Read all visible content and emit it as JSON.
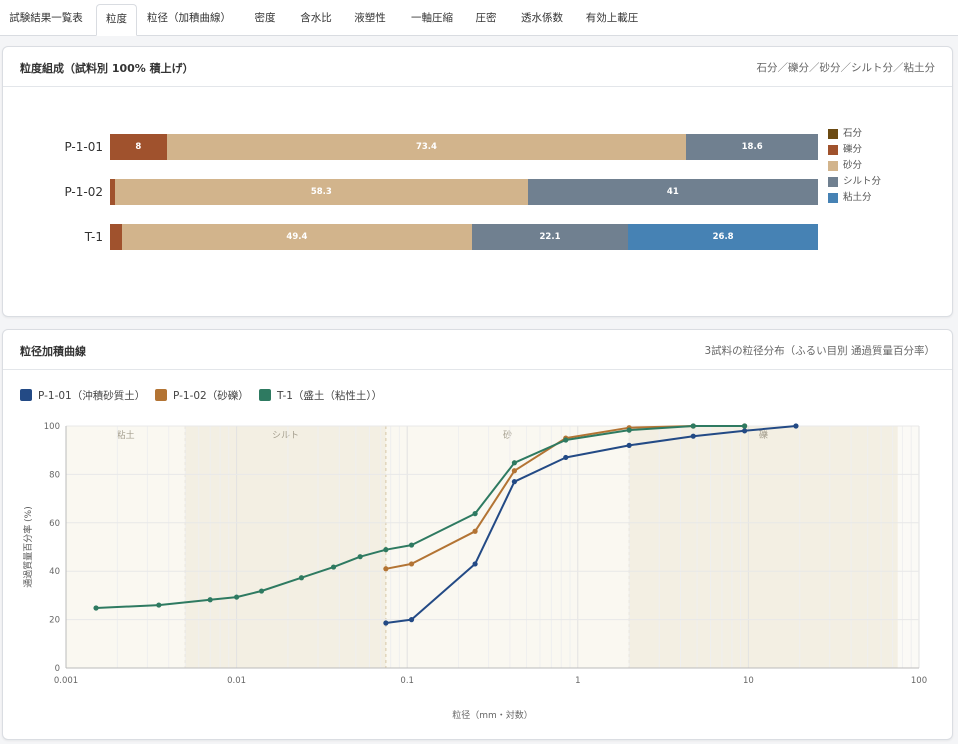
{
  "tabs": [
    {
      "label": "試験結果一覧表",
      "active": false
    },
    {
      "label": "粒度",
      "active": true
    },
    {
      "label": "粒径（加積曲線）",
      "active": false
    },
    {
      "label": "密度",
      "active": false
    },
    {
      "label": "含水比",
      "active": false
    },
    {
      "label": "液塑性",
      "active": false
    },
    {
      "label": "一軸圧縮",
      "active": false
    },
    {
      "label": "圧密",
      "active": false
    },
    {
      "label": "透水係数",
      "active": false
    },
    {
      "label": "有効上載圧",
      "active": false
    }
  ],
  "composition_panel": {
    "title": "粒度組成（試料別 100% 積上げ）",
    "subtitle": "石分／礫分／砂分／シルト分／粘土分"
  },
  "curve_panel": {
    "title": "粒径加積曲線",
    "subtitle": "3試料の粒径分布（ふるい目別 通過質量百分率）"
  },
  "colors": {
    "gravel_stone": "#6b4a12",
    "gravel": "#a0522d",
    "sand": "#d2b48c",
    "silt": "#708090",
    "clay": "#4682b4",
    "p101": "#234a85",
    "p102": "#b37434",
    "t1": "#2e7a61"
  },
  "chart_data": [
    {
      "type": "bar",
      "orientation": "horizontal",
      "stacked": true,
      "categories": [
        "P-1-01",
        "P-1-02",
        "T-1"
      ],
      "series": [
        {
          "name": "石分",
          "values": [
            0,
            0,
            0
          ],
          "color": "#6b4a12"
        },
        {
          "name": "礫分",
          "values": [
            8,
            0.7,
            1.7
          ],
          "color": "#a0522d"
        },
        {
          "name": "砂分",
          "values": [
            73.4,
            58.3,
            49.4
          ],
          "color": "#d2b48c"
        },
        {
          "name": "シルト分",
          "values": [
            18.6,
            41,
            22.1
          ],
          "color": "#708090"
        },
        {
          "name": "粘土分",
          "values": [
            0,
            0,
            26.8
          ],
          "color": "#4682b4"
        }
      ],
      "data_labels": [
        [
          "",
          "8",
          "73.4",
          "18.6",
          ""
        ],
        [
          "",
          "",
          "58.3",
          "41",
          ""
        ],
        [
          "",
          "",
          "49.4",
          "22.1",
          "26.8"
        ]
      ],
      "xlim": [
        0,
        100
      ],
      "legend": "right"
    },
    {
      "type": "line",
      "xscale": "log",
      "xlabel": "粒径（mm・対数）",
      "ylabel": "通過質量百分率 (%)",
      "xlim": [
        0.001,
        100
      ],
      "ylim": [
        0,
        100
      ],
      "xticks": [
        0.001,
        0.01,
        0.1,
        1,
        10,
        100
      ],
      "xtick_labels": [
        "0.001",
        "0.01",
        "0.1",
        "1",
        "10",
        "100"
      ],
      "yticks": [
        0,
        20,
        40,
        60,
        80,
        100
      ],
      "legend": "top-left",
      "zones": [
        {
          "label": "粘土",
          "from": 0.001,
          "to": 0.005
        },
        {
          "label": "シルト",
          "from": 0.005,
          "to": 0.075
        },
        {
          "label": "砂",
          "from": 0.075,
          "to": 2
        },
        {
          "label": "礫",
          "from": 2,
          "to": 75
        }
      ],
      "series": [
        {
          "name": "P-1-01（沖積砂質土）",
          "color": "#234a85",
          "points": [
            [
              0.075,
              18.6
            ],
            [
              0.106,
              20
            ],
            [
              0.25,
              43
            ],
            [
              0.425,
              77
            ],
            [
              0.85,
              87
            ],
            [
              2,
              92
            ],
            [
              4.75,
              95.8
            ],
            [
              9.5,
              98
            ],
            [
              19,
              100
            ]
          ]
        },
        {
          "name": "P-1-02（砂礫）",
          "color": "#b37434",
          "points": [
            [
              0.075,
              41
            ],
            [
              0.106,
              43
            ],
            [
              0.25,
              56.5
            ],
            [
              0.425,
              81.5
            ],
            [
              0.85,
              95
            ],
            [
              2,
              99.3
            ],
            [
              4.75,
              100
            ],
            [
              9.5,
              100
            ]
          ]
        },
        {
          "name": "T-1（盛土（粘性土））",
          "color": "#2e7a61",
          "points": [
            [
              0.0015,
              24.8
            ],
            [
              0.0035,
              26
            ],
            [
              0.007,
              28.2
            ],
            [
              0.01,
              29.3
            ],
            [
              0.014,
              31.8
            ],
            [
              0.024,
              37.3
            ],
            [
              0.037,
              41.7
            ],
            [
              0.053,
              46
            ],
            [
              0.075,
              48.9
            ],
            [
              0.106,
              50.8
            ],
            [
              0.25,
              63.8
            ],
            [
              0.425,
              84.8
            ],
            [
              0.85,
              94.2
            ],
            [
              2,
              98.3
            ],
            [
              4.75,
              100
            ],
            [
              9.5,
              100
            ]
          ]
        }
      ]
    }
  ]
}
